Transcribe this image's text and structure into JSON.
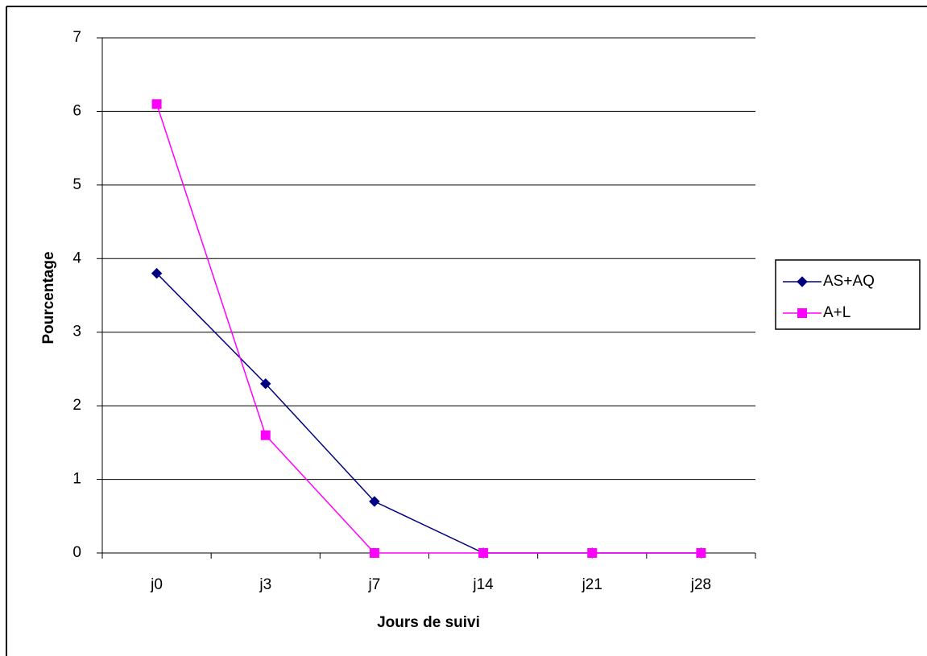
{
  "chart_data": {
    "type": "line",
    "x_label": "Jours de suivi",
    "y_label": "Pourcentage",
    "categories": [
      "j0",
      "j3",
      "j7",
      "j14",
      "j21",
      "j28"
    ],
    "series": [
      {
        "name": "AS+AQ",
        "color": "#000080",
        "marker": "diamond",
        "values": [
          3.8,
          2.3,
          0.7,
          0,
          0,
          0
        ]
      },
      {
        "name": "A+L",
        "color": "#ff00ff",
        "marker": "square",
        "values": [
          6.1,
          1.6,
          0,
          0,
          0,
          0
        ]
      }
    ],
    "ylim": [
      0,
      7
    ],
    "yticks": [
      0,
      1,
      2,
      3,
      4,
      5,
      6,
      7
    ],
    "grid": true,
    "legend": "right"
  }
}
